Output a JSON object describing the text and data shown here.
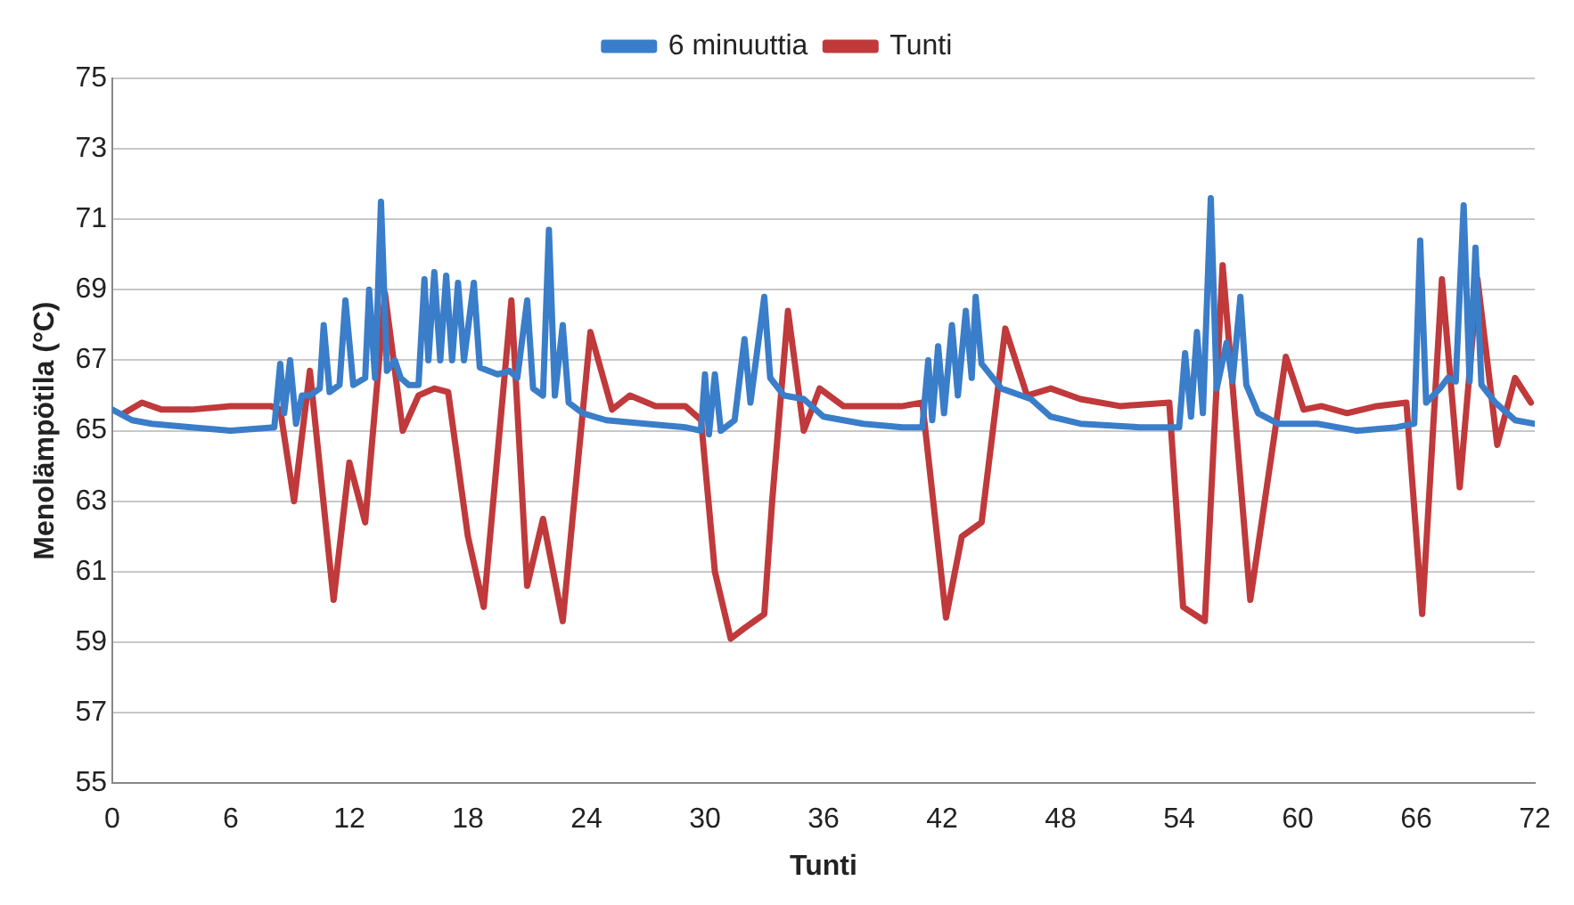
{
  "chart_data": {
    "type": "line",
    "xlabel": "Tunti",
    "ylabel": "Menolämpötila (°C)",
    "xlim": [
      0,
      72
    ],
    "xticks": [
      0,
      6,
      12,
      18,
      24,
      30,
      36,
      42,
      48,
      54,
      60,
      66,
      72
    ],
    "ylim": [
      55,
      75
    ],
    "yticks": [
      55,
      57,
      59,
      61,
      63,
      65,
      67,
      69,
      71,
      73,
      75
    ],
    "grid": "y",
    "legend": "top",
    "marker": "none",
    "line_style": "solid",
    "series": [
      {
        "name": "6 minuuttia",
        "color": "#3a7dc9",
        "x": [
          0,
          1,
          2,
          4,
          6,
          8.2,
          8.5,
          8.7,
          9,
          9.3,
          9.6,
          10,
          10.5,
          10.7,
          11,
          11.5,
          11.8,
          12.2,
          12.8,
          13,
          13.3,
          13.6,
          13.9,
          14.3,
          14.6,
          15,
          15.5,
          15.8,
          16,
          16.3,
          16.6,
          16.9,
          17.2,
          17.5,
          17.8,
          18.3,
          18.6,
          19.5,
          20.1,
          20.5,
          21,
          21.3,
          21.8,
          22.1,
          22.4,
          22.8,
          23.1,
          23.8,
          25,
          27,
          29,
          29.8,
          30,
          30.2,
          30.5,
          30.8,
          31.5,
          32,
          32.3,
          33,
          33.3,
          34,
          35,
          36,
          38,
          40,
          41,
          41.3,
          41.5,
          41.8,
          42.1,
          42.5,
          42.8,
          43.2,
          43.5,
          43.7,
          44,
          45,
          46.5,
          47.5,
          49,
          52,
          54,
          54.3,
          54.6,
          54.9,
          55.2,
          55.6,
          55.9,
          56.4,
          56.7,
          57.1,
          57.4,
          58,
          59,
          61,
          63,
          65,
          65.9,
          66.2,
          66.5,
          67.2,
          67.6,
          68,
          68.4,
          68.7,
          69,
          69.3,
          70,
          71,
          72
        ],
        "values": [
          65.6,
          65.3,
          65.2,
          65.1,
          65,
          65.1,
          66.9,
          65.5,
          67,
          65.2,
          66,
          66,
          66.2,
          68,
          66.1,
          66.3,
          68.7,
          66.3,
          66.5,
          69,
          66.5,
          71.5,
          66.7,
          67,
          66.5,
          66.3,
          66.3,
          69.3,
          67,
          69.5,
          67,
          69.4,
          67,
          69.2,
          67,
          69.2,
          66.8,
          66.6,
          66.7,
          66.5,
          68.7,
          66.2,
          66,
          70.7,
          66,
          68,
          65.8,
          65.5,
          65.3,
          65.2,
          65.1,
          65,
          66.6,
          64.9,
          66.6,
          65,
          65.3,
          67.6,
          65.8,
          68.8,
          66.5,
          66,
          65.9,
          65.4,
          65.2,
          65.1,
          65.1,
          67,
          65.3,
          67.4,
          65.5,
          68,
          66,
          68.4,
          66.5,
          68.8,
          66.9,
          66.2,
          65.9,
          65.4,
          65.2,
          65.1,
          65.1,
          67.2,
          65.4,
          67.8,
          65.5,
          71.6,
          66.2,
          67.5,
          66.4,
          68.8,
          66.3,
          65.5,
          65.2,
          65.2,
          65,
          65.1,
          65.2,
          70.4,
          65.8,
          66.2,
          66.5,
          66.4,
          71.4,
          66.4,
          70.2,
          66.3,
          65.8,
          65.3,
          65.2
        ]
      },
      {
        "name": "Tunti",
        "color": "#c0393b",
        "x": [
          0.6,
          1.5,
          2.5,
          4,
          6,
          8,
          8.5,
          9.2,
          10,
          11.2,
          12,
          12.8,
          13.8,
          14.7,
          15.5,
          16.3,
          17,
          18,
          18.8,
          20.2,
          21,
          21.8,
          22.8,
          24.2,
          25.3,
          26.2,
          27.5,
          29,
          29.8,
          30.5,
          31.3,
          32,
          33,
          33.4,
          34.2,
          35,
          35.8,
          37,
          40,
          41,
          42.2,
          43,
          44,
          45.2,
          46.3,
          47.5,
          49,
          51,
          53.5,
          54.2,
          55.3,
          56.2,
          57.6,
          59.4,
          60.3,
          61.2,
          62.5,
          64,
          65.5,
          66.3,
          67.3,
          68.2,
          69.1,
          70.1,
          71,
          71.8
        ],
        "values": [
          65.5,
          65.8,
          65.6,
          65.6,
          65.7,
          65.7,
          65.6,
          63,
          66.7,
          60.2,
          64.1,
          62.4,
          68.9,
          65,
          66,
          66.2,
          66.1,
          62,
          60,
          68.7,
          60.6,
          62.5,
          59.6,
          67.8,
          65.6,
          66,
          65.7,
          65.7,
          65.3,
          61,
          59.1,
          59.4,
          59.8,
          63,
          68.4,
          65,
          66.2,
          65.7,
          65.7,
          65.8,
          59.7,
          62,
          62.4,
          67.9,
          66,
          66.2,
          65.9,
          65.7,
          65.8,
          60,
          59.6,
          69.7,
          60.2,
          67.1,
          65.6,
          65.7,
          65.5,
          65.7,
          65.8,
          59.8,
          69.3,
          63.4,
          69.3,
          64.6,
          66.5,
          65.8
        ]
      }
    ]
  }
}
